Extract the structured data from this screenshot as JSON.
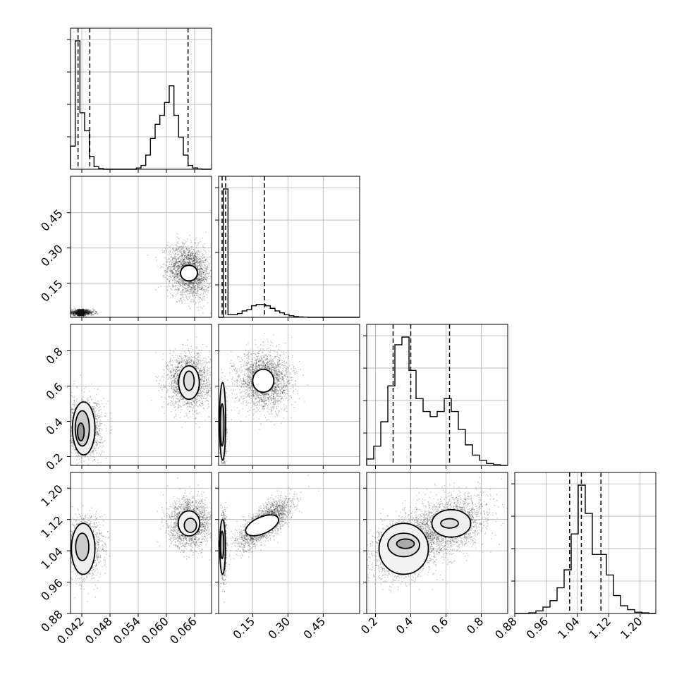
{
  "chart_data": {
    "type": "corner",
    "title": "",
    "grid": true,
    "parameters": [
      {
        "range": [
          0.0396,
          0.0696
        ],
        "ticks": [
          0.042,
          0.048,
          0.054,
          0.06,
          0.066
        ],
        "tick_labels": [
          "0.042",
          "0.048",
          "0.054",
          "0.060",
          "0.066"
        ],
        "quantiles": [
          0.0412,
          0.0437,
          0.0646
        ],
        "hist_values": [
          0.18,
          1.0,
          0.44,
          0.3,
          0.1,
          0.02,
          0.005,
          0,
          0,
          0,
          0,
          0,
          0,
          0,
          0.01,
          0.03,
          0.11,
          0.24,
          0.35,
          0.42,
          0.52,
          0.65,
          0.42,
          0.25,
          0.11,
          0.03,
          0.01,
          0.002,
          0,
          0
        ]
      },
      {
        "range": [
          0.005,
          0.605
        ],
        "ticks": [
          0.15,
          0.3,
          0.45
        ],
        "tick_labels": [
          "0.15",
          "0.30",
          "0.45"
        ],
        "quantiles": [
          0.02,
          0.035,
          0.2
        ],
        "hist_values": [
          0.0,
          1.0,
          0.02,
          0.02,
          0.03,
          0.05,
          0.06,
          0.09,
          0.1,
          0.1,
          0.09,
          0.07,
          0.05,
          0.035,
          0.02,
          0.012,
          0.006,
          0.003,
          0.001,
          0,
          0,
          0,
          0,
          0,
          0,
          0,
          0,
          0,
          0,
          0
        ]
      },
      {
        "range": [
          0.15,
          0.95
        ],
        "ticks": [
          0.2,
          0.4,
          0.6,
          0.8
        ],
        "tick_labels": [
          "0.2",
          "0.4",
          "0.6",
          "0.8"
        ],
        "quantiles": [
          0.3,
          0.4,
          0.62
        ],
        "hist_values": [
          0.05,
          0.15,
          0.34,
          0.62,
          0.94,
          1.0,
          0.74,
          0.52,
          0.42,
          0.38,
          0.42,
          0.52,
          0.42,
          0.28,
          0.16,
          0.08,
          0.04,
          0.015,
          0.005,
          0
        ]
      },
      {
        "range": [
          0.88,
          1.24
        ],
        "ticks": [
          0.88,
          0.96,
          1.04,
          1.12,
          1.2
        ],
        "tick_labels": [
          "0.88",
          "0.96",
          "1.04",
          "1.12",
          "1.20"
        ],
        "quantiles": [
          1.02,
          1.05,
          1.1
        ],
        "hist_values": [
          0,
          0,
          0.005,
          0.02,
          0.05,
          0.1,
          0.2,
          0.34,
          0.62,
          1.0,
          0.78,
          0.46,
          0.46,
          0.3,
          0.14,
          0.06,
          0.03,
          0.01,
          0.005,
          0
        ]
      }
    ],
    "pairs": [
      {
        "row": 1,
        "col": 0,
        "clusters": [
          {
            "cx": 0.0648,
            "cy": 0.2,
            "sx": 0.0022,
            "sy": 0.055,
            "rho": -0.2,
            "n": 2400
          },
          {
            "cx": 0.0418,
            "cy": 0.025,
            "sx": 0.0014,
            "sy": 0.006,
            "rho": 0.0,
            "n": 900
          }
        ],
        "contours": [
          {
            "cx": 0.0648,
            "cy": 0.193,
            "rx": 0.0018,
            "ry": 0.033,
            "fill": "#ffffff"
          }
        ],
        "dense_cells": [
          {
            "x": 0.0418,
            "y": 0.025,
            "shade": "#111111"
          }
        ]
      },
      {
        "row": 2,
        "col": 0,
        "clusters": [
          {
            "cx": 0.0648,
            "cy": 0.63,
            "sx": 0.0022,
            "sy": 0.075,
            "rho": 0.0,
            "n": 2000
          },
          {
            "cx": 0.0425,
            "cy": 0.36,
            "sx": 0.0018,
            "sy": 0.08,
            "rho": 0.0,
            "n": 1800
          }
        ],
        "contours": [
          {
            "cx": 0.0648,
            "cy": 0.62,
            "rx": 0.0022,
            "ry": 0.095,
            "fill": "#eeeeee"
          },
          {
            "cx": 0.0648,
            "cy": 0.63,
            "rx": 0.0011,
            "ry": 0.055,
            "fill": "#dddddd"
          },
          {
            "cx": 0.0424,
            "cy": 0.36,
            "rx": 0.0024,
            "ry": 0.15,
            "fill": "#eeeeee"
          },
          {
            "cx": 0.0421,
            "cy": 0.36,
            "rx": 0.0015,
            "ry": 0.1,
            "fill": "#cccccc"
          },
          {
            "cx": 0.0418,
            "cy": 0.34,
            "rx": 0.0007,
            "ry": 0.05,
            "fill": "#999999"
          }
        ],
        "dense_cells": [
          {
            "x": 0.0418,
            "y": 0.38,
            "shade": "#111111"
          }
        ]
      },
      {
        "row": 3,
        "col": 0,
        "clusters": [
          {
            "cx": 0.065,
            "cy": 1.11,
            "sx": 0.0022,
            "sy": 0.03,
            "rho": 0.0,
            "n": 2000
          },
          {
            "cx": 0.0425,
            "cy": 1.05,
            "sx": 0.0018,
            "sy": 0.035,
            "rho": 0.0,
            "n": 1800
          }
        ],
        "contours": [
          {
            "cx": 0.0648,
            "cy": 1.11,
            "rx": 0.0023,
            "ry": 0.032,
            "fill": "#f2f2f2"
          },
          {
            "cx": 0.0651,
            "cy": 1.105,
            "rx": 0.0013,
            "ry": 0.018,
            "fill": "#dddddd"
          },
          {
            "cx": 0.0423,
            "cy": 1.045,
            "rx": 0.0025,
            "ry": 0.065,
            "fill": "#eeeeee"
          },
          {
            "cx": 0.0421,
            "cy": 1.05,
            "rx": 0.0014,
            "ry": 0.035,
            "fill": "#cccccc"
          }
        ],
        "dense_cells": [
          {
            "x": 0.0418,
            "y": 1.058,
            "shade": "#111111"
          }
        ]
      },
      {
        "row": 2,
        "col": 1,
        "clusters": [
          {
            "cx": 0.2,
            "cy": 0.63,
            "sx": 0.055,
            "sy": 0.08,
            "rho": 0.0,
            "n": 2400
          },
          {
            "cx": 0.025,
            "cy": 0.37,
            "sx": 0.006,
            "sy": 0.1,
            "rho": 0.0,
            "n": 1200
          }
        ],
        "contours": [
          {
            "cx": 0.195,
            "cy": 0.63,
            "rx": 0.045,
            "ry": 0.065,
            "fill": "#ffffff"
          },
          {
            "cx": 0.022,
            "cy": 0.4,
            "rx": 0.013,
            "ry": 0.22,
            "fill": "#eeeeee"
          },
          {
            "cx": 0.02,
            "cy": 0.38,
            "rx": 0.008,
            "ry": 0.12,
            "fill": "#bbbbbb"
          }
        ],
        "dense_cells": [
          {
            "x": 0.018,
            "y": 0.37,
            "shade": "#333333"
          }
        ]
      },
      {
        "row": 3,
        "col": 1,
        "clusters": [
          {
            "cx": 0.2,
            "cy": 1.11,
            "sx": 0.055,
            "sy": 0.03,
            "rho": 0.75,
            "n": 2400
          },
          {
            "cx": 0.025,
            "cy": 1.05,
            "sx": 0.006,
            "sy": 0.04,
            "rho": 0.0,
            "n": 1200
          }
        ],
        "contours": [
          {
            "cx": 0.19,
            "cy": 1.105,
            "rx": 0.075,
            "ry": 0.021,
            "rot": -24,
            "fill": "#ffffff"
          },
          {
            "cx": 0.022,
            "cy": 1.05,
            "rx": 0.012,
            "ry": 0.07,
            "fill": "#eeeeee"
          },
          {
            "cx": 0.02,
            "cy": 1.055,
            "rx": 0.007,
            "ry": 0.035,
            "fill": "#bbbbbb"
          }
        ],
        "dense_cells": [
          {
            "x": 0.018,
            "y": 1.058,
            "shade": "#333333"
          }
        ]
      },
      {
        "row": 3,
        "col": 2,
        "clusters": [
          {
            "cx": 0.38,
            "cy": 1.05,
            "sx": 0.1,
            "sy": 0.04,
            "rho": 0.3,
            "n": 2500
          },
          {
            "cx": 0.63,
            "cy": 1.11,
            "sx": 0.1,
            "sy": 0.035,
            "rho": 0.3,
            "n": 2000
          }
        ],
        "contours": [
          {
            "cx": 0.36,
            "cy": 1.045,
            "rx": 0.14,
            "ry": 0.065,
            "fill": "#f2f2f2"
          },
          {
            "cx": 0.36,
            "cy": 1.055,
            "rx": 0.09,
            "ry": 0.03,
            "fill": "#dddddd"
          },
          {
            "cx": 0.37,
            "cy": 1.058,
            "rx": 0.05,
            "ry": 0.012,
            "fill": "#aaaaaa"
          },
          {
            "cx": 0.63,
            "cy": 1.11,
            "rx": 0.11,
            "ry": 0.035,
            "fill": "#eeeeee"
          },
          {
            "cx": 0.62,
            "cy": 1.11,
            "rx": 0.05,
            "ry": 0.012,
            "fill": "#dddddd"
          }
        ],
        "dense_cells": [
          {
            "x": 0.37,
            "y": 1.058,
            "shade": "#222222"
          }
        ]
      }
    ]
  }
}
